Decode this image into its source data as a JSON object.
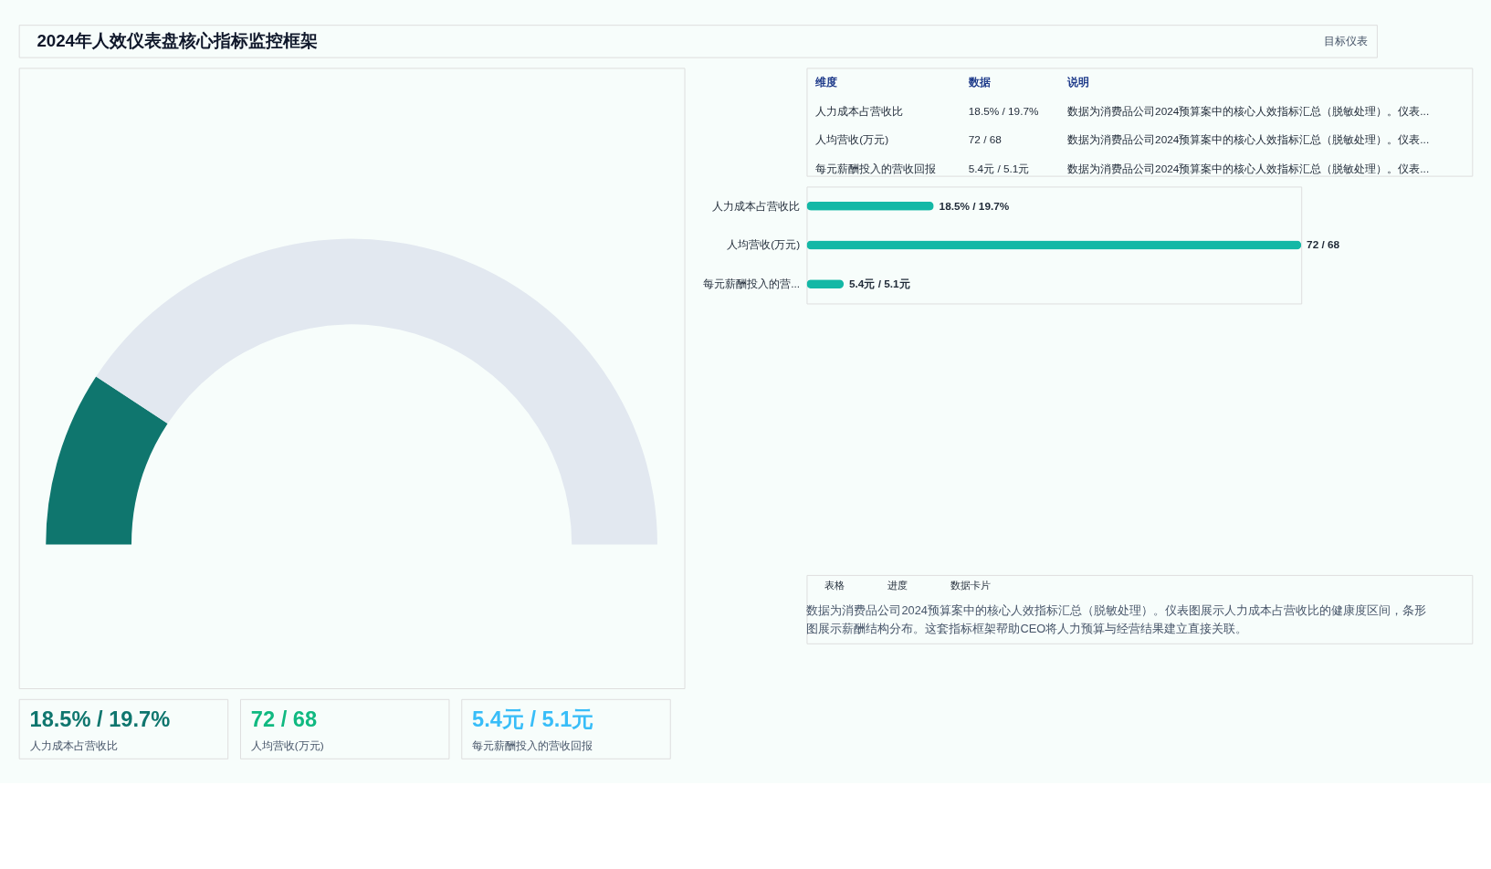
{
  "chart_data": [
    {
      "type": "donut",
      "title": "2024年人效仪表盘核心指标监控框架",
      "annotations": [
        "目标仪表"
      ],
      "categories": [
        null,
        null
      ],
      "values": [
        18.5,
        81.5
      ],
      "colors": [
        "#0f766e",
        "#e2e8f0"
      ]
    },
    {
      "type": "other",
      "annotations": [
        "维度",
        "数据",
        "说明",
        "人力成本占营收比",
        "18.5% / 19.7%",
        "数据为消费品公司2024预算案中的核心人效指标汇总（脱敏处理）。仪表...",
        "人均营收(万元)",
        "72 / 68",
        "数据为消费品公司2024预算案中的核心人效指标汇总（脱敏处理）。仪表...",
        "每元薪酬投入的营收回报",
        "5.4元 / 5.1元",
        "数据为消费品公司2024预算案中的核心人效指标汇总（脱敏处理）。仪表..."
      ]
    },
    {
      "type": "bar",
      "orientation": "horizontal",
      "tick_labels": "y",
      "categories": [
        "人力成本占营收比",
        "人均营收(万元)",
        "每元薪酬投入的营..."
      ],
      "values": [
        18.5,
        72,
        5.4
      ],
      "value_labels": [
        "18.5% / 19.7%",
        "72 / 68",
        "5.4元 / 5.1元"
      ],
      "color": "#14b8a6"
    },
    {
      "type": "other",
      "annotations": [
        "18.5% / 19.7%",
        "人力成本占营收比",
        "72 / 68",
        "人均营收(万元)",
        "5.4元 / 5.1元",
        "每元薪酬投入的营收回报"
      ],
      "colors": [
        "#0f766e",
        "#10b981",
        "#38bdf8"
      ]
    },
    {
      "type": "other",
      "annotations": [
        "表格",
        "进度",
        "数据卡片",
        "数据为消费品公司2024预算案中的核心人效指标汇总（脱敏处理）。仪表图展示人力成本占营收比的健康度区间，条形图展示薪酬结构分布。这套指标框架帮助CEO将人力预算与经营结果建立直接关联。"
      ]
    }
  ]
}
